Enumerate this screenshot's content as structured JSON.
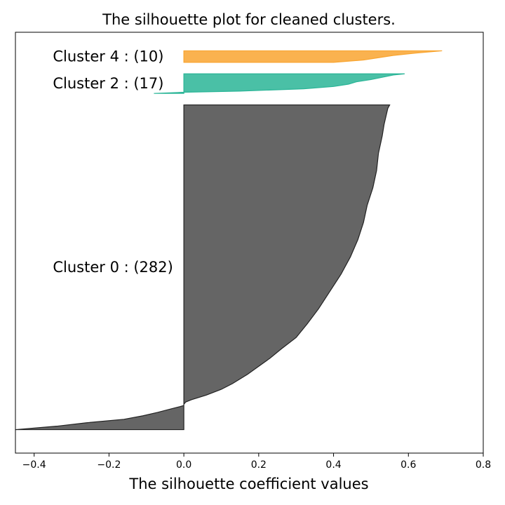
{
  "chart_data": {
    "type": "area",
    "title": "The silhouette plot for cleaned clusters.",
    "xlabel": "The silhouette coefficient values",
    "ylabel": "",
    "xlim": [
      -0.45,
      0.8
    ],
    "xticks": [
      -0.4,
      -0.2,
      0.0,
      0.2,
      0.4,
      0.6,
      0.8
    ],
    "xtick_labels": [
      "−0.4",
      "−0.2",
      "0.0",
      "0.2",
      "0.4",
      "0.6",
      "0.8"
    ],
    "yticks": [],
    "grid": false,
    "legend": "none",
    "series": [
      {
        "label": "Cluster 0 : (282)",
        "count": 282,
        "color": "#4a4a4a",
        "edge_color": "#222222",
        "y_start": 10,
        "y_end": 292,
        "silhouette_profile": [
          [
            0,
            -0.45
          ],
          [
            3,
            -0.34
          ],
          [
            6,
            -0.26
          ],
          [
            9,
            -0.16
          ],
          [
            12,
            -0.11
          ],
          [
            15,
            -0.07
          ],
          [
            18,
            -0.035
          ],
          [
            20,
            -0.01
          ],
          [
            21,
            0.0
          ],
          [
            22,
            0.0
          ],
          [
            24,
            0.005
          ],
          [
            26,
            0.02
          ],
          [
            30,
            0.06
          ],
          [
            35,
            0.1
          ],
          [
            40,
            0.13
          ],
          [
            48,
            0.17
          ],
          [
            55,
            0.2
          ],
          [
            62,
            0.23
          ],
          [
            70,
            0.26
          ],
          [
            80,
            0.3
          ],
          [
            92,
            0.33
          ],
          [
            105,
            0.36
          ],
          [
            120,
            0.39
          ],
          [
            135,
            0.42
          ],
          [
            150,
            0.445
          ],
          [
            165,
            0.465
          ],
          [
            180,
            0.48
          ],
          [
            195,
            0.49
          ],
          [
            210,
            0.505
          ],
          [
            225,
            0.515
          ],
          [
            240,
            0.52
          ],
          [
            255,
            0.53
          ],
          [
            265,
            0.535
          ],
          [
            272,
            0.54
          ],
          [
            279,
            0.545
          ],
          [
            282,
            0.55
          ]
        ]
      },
      {
        "label": "Cluster 2 : (17)",
        "count": 17,
        "color": "#2ab597",
        "edge_color": "#2ab597",
        "y_start": 302,
        "y_end": 319,
        "silhouette_profile": [
          [
            0,
            -0.08
          ],
          [
            1,
            0.0
          ],
          [
            2,
            0.15
          ],
          [
            4,
            0.32
          ],
          [
            6,
            0.4
          ],
          [
            8,
            0.44
          ],
          [
            10,
            0.46
          ],
          [
            12,
            0.5
          ],
          [
            14,
            0.53
          ],
          [
            16,
            0.56
          ],
          [
            17,
            0.59
          ]
        ]
      },
      {
        "label": "Cluster 4 : (10)",
        "count": 10,
        "color": "#f9a530",
        "edge_color": "#f9a530",
        "y_start": 329,
        "y_end": 339,
        "silhouette_profile": [
          [
            0,
            0.4
          ],
          [
            2,
            0.48
          ],
          [
            4,
            0.52
          ],
          [
            6,
            0.56
          ],
          [
            8,
            0.62
          ],
          [
            10,
            0.69
          ]
        ]
      }
    ],
    "y_total": 349
  }
}
